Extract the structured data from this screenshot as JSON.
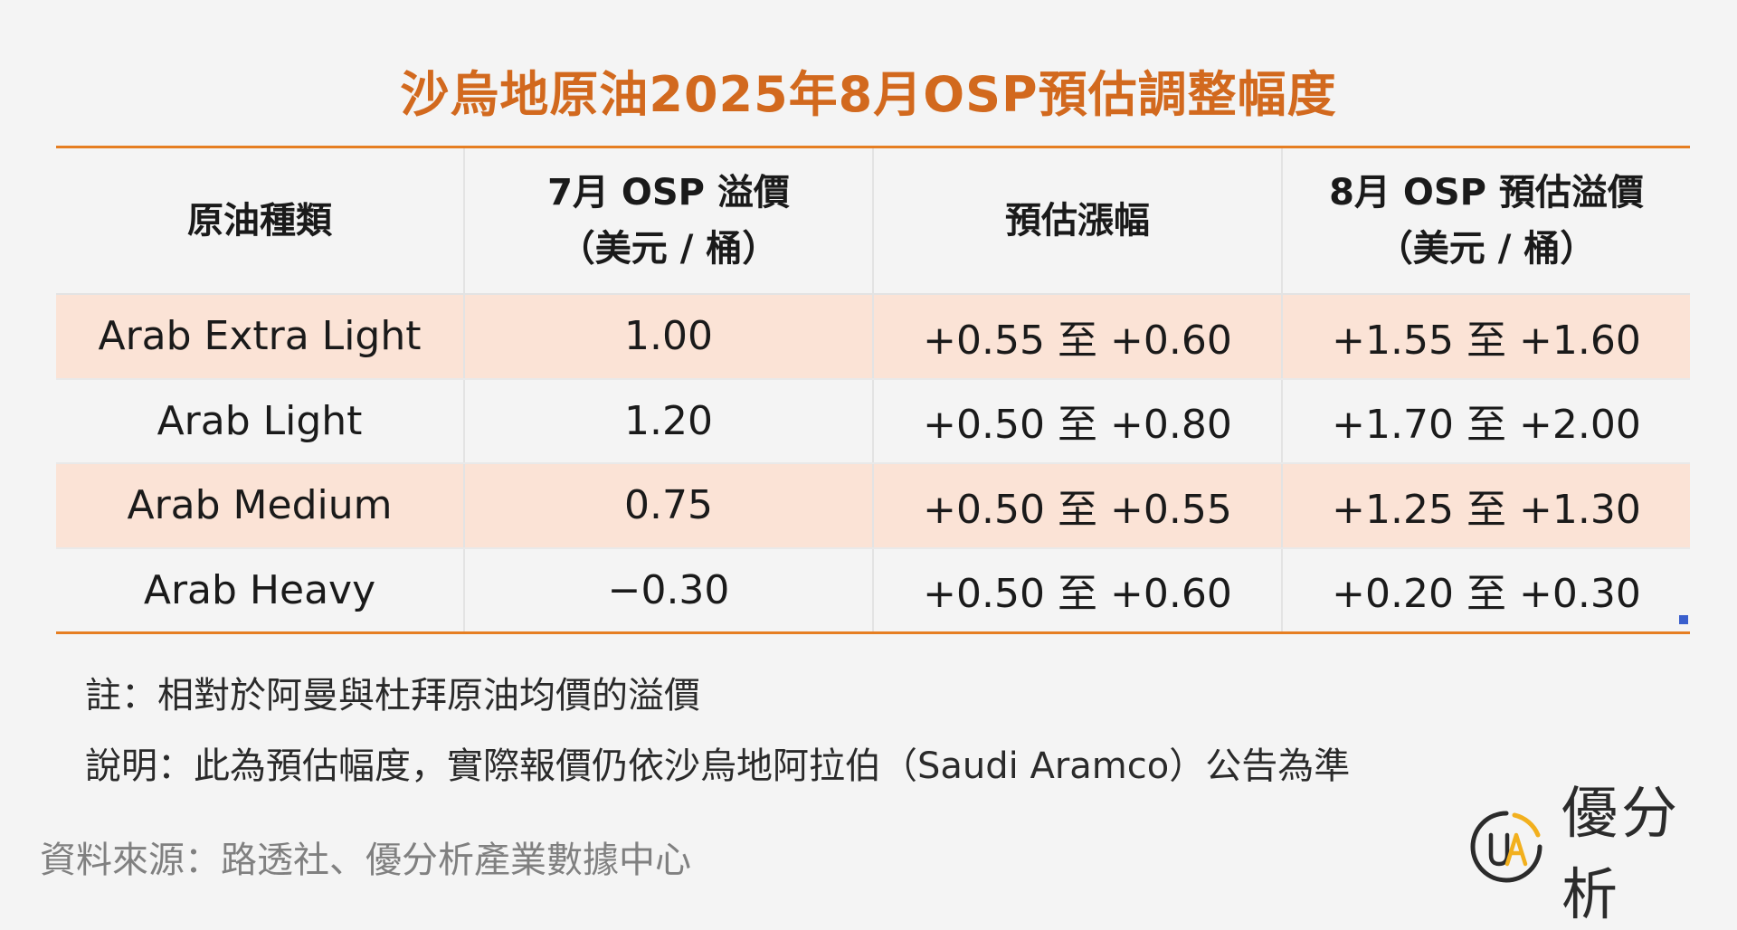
{
  "title": "沙烏地原油2025年8月OSP預估調整幅度",
  "table": {
    "headers": [
      {
        "line1": "原油種類",
        "line2": ""
      },
      {
        "line1": "7月 OSP 溢價",
        "line2": "（美元 / 桶）"
      },
      {
        "line1": "預估漲幅",
        "line2": ""
      },
      {
        "line1": "8月 OSP 預估溢價",
        "line2": "（美元 / 桶）"
      }
    ],
    "rows": [
      {
        "type": "Arab Extra Light",
        "july": "1.00",
        "change": "+0.55 至 +0.60",
        "august": "+1.55 至 +1.60"
      },
      {
        "type": "Arab Light",
        "july": "1.20",
        "change": "+0.50 至 +0.80",
        "august": "+1.70 至 +2.00"
      },
      {
        "type": "Arab Medium",
        "july": "0.75",
        "change": "+0.50 至 +0.55",
        "august": "+1.25 至 +1.30"
      },
      {
        "type": "Arab Heavy",
        "july": "−0.30",
        "change": "+0.50 至 +0.60",
        "august": "+0.20 至 +0.30"
      }
    ]
  },
  "notes": {
    "note1": "註：相對於阿曼與杜拜原油均價的溢價",
    "note2": "說明：此為預估幅度，實際報價仍依沙烏地阿拉伯（Saudi Aramco）公告為準"
  },
  "source": "資料來源：路透社、優分析產業數據中心",
  "brand": {
    "name": "優分析",
    "logo_text": "UA",
    "colors": {
      "accent": "#e67e22",
      "title": "#d2691e",
      "row_shade": "#fbe3d6",
      "logo_yellow": "#f2b01e"
    }
  }
}
